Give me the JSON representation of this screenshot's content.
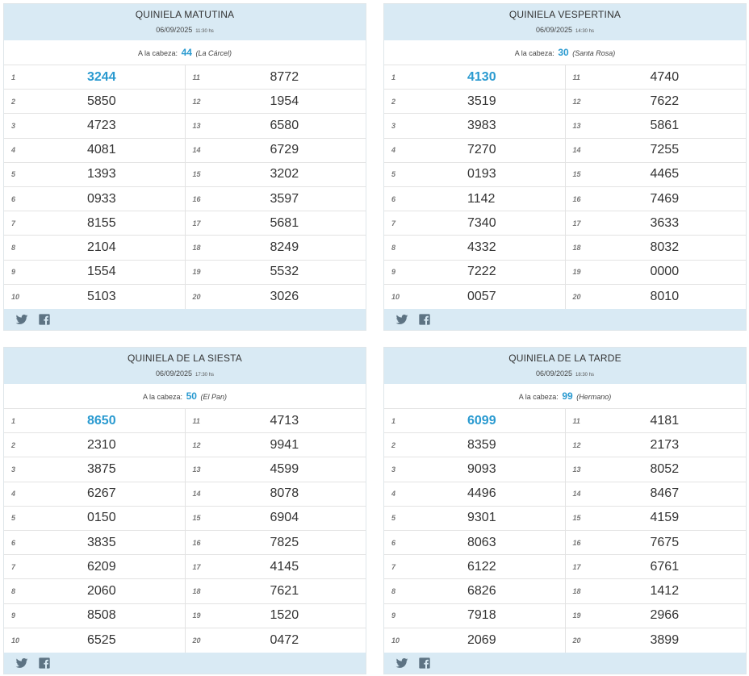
{
  "cards": [
    {
      "title": "QUINIELA MATUTINA",
      "date": "06/09/2025",
      "time": "11:30 hs",
      "cabeza_label": "A la cabeza:",
      "cabeza_num": "44",
      "cabeza_name": "(La Cárcel)",
      "left": [
        {
          "pos": "1",
          "num": "3244"
        },
        {
          "pos": "2",
          "num": "5850"
        },
        {
          "pos": "3",
          "num": "4723"
        },
        {
          "pos": "4",
          "num": "4081"
        },
        {
          "pos": "5",
          "num": "1393"
        },
        {
          "pos": "6",
          "num": "0933"
        },
        {
          "pos": "7",
          "num": "8155"
        },
        {
          "pos": "8",
          "num": "2104"
        },
        {
          "pos": "9",
          "num": "1554"
        },
        {
          "pos": "10",
          "num": "5103"
        }
      ],
      "right": [
        {
          "pos": "11",
          "num": "8772"
        },
        {
          "pos": "12",
          "num": "1954"
        },
        {
          "pos": "13",
          "num": "6580"
        },
        {
          "pos": "14",
          "num": "6729"
        },
        {
          "pos": "15",
          "num": "3202"
        },
        {
          "pos": "16",
          "num": "3597"
        },
        {
          "pos": "17",
          "num": "5681"
        },
        {
          "pos": "18",
          "num": "8249"
        },
        {
          "pos": "19",
          "num": "5532"
        },
        {
          "pos": "20",
          "num": "3026"
        }
      ]
    },
    {
      "title": "QUINIELA VESPERTINA",
      "date": "06/09/2025",
      "time": "14:30 hs",
      "cabeza_label": "A la cabeza:",
      "cabeza_num": "30",
      "cabeza_name": "(Santa Rosa)",
      "left": [
        {
          "pos": "1",
          "num": "4130"
        },
        {
          "pos": "2",
          "num": "3519"
        },
        {
          "pos": "3",
          "num": "3983"
        },
        {
          "pos": "4",
          "num": "7270"
        },
        {
          "pos": "5",
          "num": "0193"
        },
        {
          "pos": "6",
          "num": "1142"
        },
        {
          "pos": "7",
          "num": "7340"
        },
        {
          "pos": "8",
          "num": "4332"
        },
        {
          "pos": "9",
          "num": "7222"
        },
        {
          "pos": "10",
          "num": "0057"
        }
      ],
      "right": [
        {
          "pos": "11",
          "num": "4740"
        },
        {
          "pos": "12",
          "num": "7622"
        },
        {
          "pos": "13",
          "num": "5861"
        },
        {
          "pos": "14",
          "num": "7255"
        },
        {
          "pos": "15",
          "num": "4465"
        },
        {
          "pos": "16",
          "num": "7469"
        },
        {
          "pos": "17",
          "num": "3633"
        },
        {
          "pos": "18",
          "num": "8032"
        },
        {
          "pos": "19",
          "num": "0000"
        },
        {
          "pos": "20",
          "num": "8010"
        }
      ]
    },
    {
      "title": "QUINIELA DE LA SIESTA",
      "date": "06/09/2025",
      "time": "17:30 hs",
      "cabeza_label": "A la cabeza:",
      "cabeza_num": "50",
      "cabeza_name": "(El Pan)",
      "left": [
        {
          "pos": "1",
          "num": "8650"
        },
        {
          "pos": "2",
          "num": "2310"
        },
        {
          "pos": "3",
          "num": "3875"
        },
        {
          "pos": "4",
          "num": "6267"
        },
        {
          "pos": "5",
          "num": "0150"
        },
        {
          "pos": "6",
          "num": "3835"
        },
        {
          "pos": "7",
          "num": "6209"
        },
        {
          "pos": "8",
          "num": "2060"
        },
        {
          "pos": "9",
          "num": "8508"
        },
        {
          "pos": "10",
          "num": "6525"
        }
      ],
      "right": [
        {
          "pos": "11",
          "num": "4713"
        },
        {
          "pos": "12",
          "num": "9941"
        },
        {
          "pos": "13",
          "num": "4599"
        },
        {
          "pos": "14",
          "num": "8078"
        },
        {
          "pos": "15",
          "num": "6904"
        },
        {
          "pos": "16",
          "num": "7825"
        },
        {
          "pos": "17",
          "num": "4145"
        },
        {
          "pos": "18",
          "num": "7621"
        },
        {
          "pos": "19",
          "num": "1520"
        },
        {
          "pos": "20",
          "num": "0472"
        }
      ]
    },
    {
      "title": "QUINIELA DE LA TARDE",
      "date": "06/09/2025",
      "time": "18:30 hs",
      "cabeza_label": "A la cabeza:",
      "cabeza_num": "99",
      "cabeza_name": "(Hermano)",
      "left": [
        {
          "pos": "1",
          "num": "6099"
        },
        {
          "pos": "2",
          "num": "8359"
        },
        {
          "pos": "3",
          "num": "9093"
        },
        {
          "pos": "4",
          "num": "4496"
        },
        {
          "pos": "5",
          "num": "9301"
        },
        {
          "pos": "6",
          "num": "8063"
        },
        {
          "pos": "7",
          "num": "6122"
        },
        {
          "pos": "8",
          "num": "6826"
        },
        {
          "pos": "9",
          "num": "7918"
        },
        {
          "pos": "10",
          "num": "2069"
        }
      ],
      "right": [
        {
          "pos": "11",
          "num": "4181"
        },
        {
          "pos": "12",
          "num": "2173"
        },
        {
          "pos": "13",
          "num": "8052"
        },
        {
          "pos": "14",
          "num": "8467"
        },
        {
          "pos": "15",
          "num": "4159"
        },
        {
          "pos": "16",
          "num": "7675"
        },
        {
          "pos": "17",
          "num": "6761"
        },
        {
          "pos": "18",
          "num": "1412"
        },
        {
          "pos": "19",
          "num": "2966"
        },
        {
          "pos": "20",
          "num": "3899"
        }
      ]
    }
  ],
  "footer_icons": [
    "twitter-icon",
    "facebook-icon"
  ],
  "colors": {
    "accent": "#2a9ad0",
    "header_bg": "#d9eaf4"
  }
}
